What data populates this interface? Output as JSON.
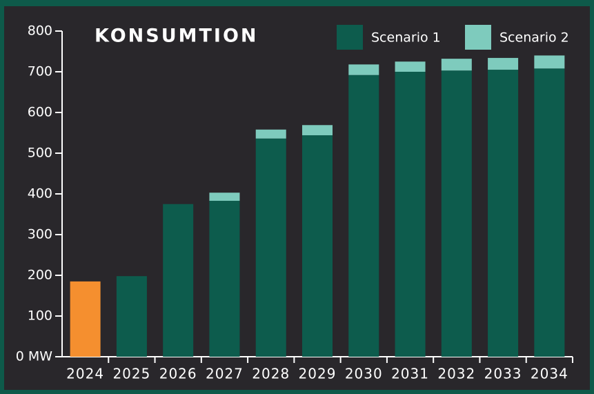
{
  "chart_data": {
    "type": "stacked_bar",
    "title": "KONSUMTION",
    "categories": [
      "2024",
      "2025",
      "2026",
      "2027",
      "2028",
      "2029",
      "2030",
      "2031",
      "2032",
      "2033",
      "2034"
    ],
    "series": [
      {
        "name": "Scenario 1",
        "color": "#0d5c4d",
        "colors": [
          "#f58f2f",
          "#0d5c4d",
          "#0d5c4d",
          "#0d5c4d",
          "#0d5c4d",
          "#0d5c4d",
          "#0d5c4d",
          "#0d5c4d",
          "#0d5c4d",
          "#0d5c4d",
          "#0d5c4d"
        ],
        "values": [
          185,
          198,
          375,
          383,
          536,
          544,
          692,
          700,
          703,
          705,
          708
        ]
      },
      {
        "name": "Scenario 2",
        "color": "#7ecbbd",
        "values": [
          null,
          null,
          null,
          20,
          22,
          25,
          26,
          25,
          29,
          29,
          32
        ]
      }
    ],
    "ylim": [
      0,
      800
    ],
    "yticks": [
      {
        "value": 0,
        "label": "0 MW"
      },
      100,
      200,
      300,
      400,
      500,
      600,
      700,
      800
    ],
    "legend": "top-right",
    "background": "#29272b"
  }
}
